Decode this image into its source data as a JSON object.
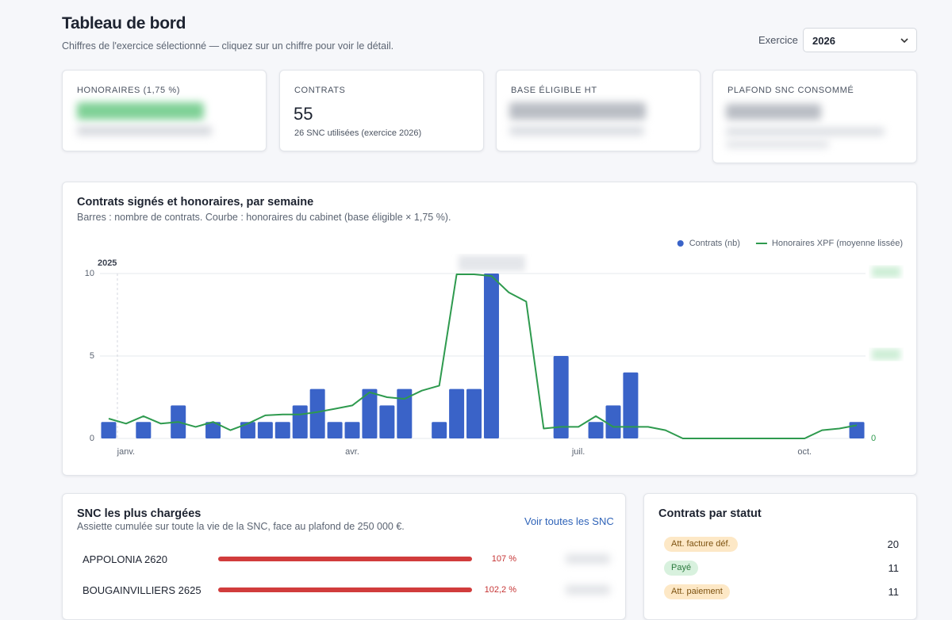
{
  "header": {
    "title": "Tableau de bord",
    "subtitle": "Chiffres de l'exercice sélectionné — cliquez sur un chiffre pour voir le détail.",
    "exercise_label": "Exercice",
    "exercise_value": "2026"
  },
  "kpis": [
    {
      "label": "HONORAIRES (1,75 %)"
    },
    {
      "label": "CONTRATS",
      "value": 55,
      "note": "26 SNC utilisées (exercice 2026)"
    },
    {
      "label": "BASE ÉLIGIBLE HT"
    },
    {
      "label": "PLAFOND SNC CONSOMMÉ"
    }
  ],
  "chart_data": {
    "type": "bar",
    "title": "Contrats signés et honoraires, par semaine",
    "subtitle": "Barres : nombre de contrats. Courbe : honoraires du cabinet (base éligible × 1,75 %).",
    "annotation": "2025",
    "categories": [
      null,
      "janv.",
      null,
      null,
      null,
      null,
      null,
      null,
      null,
      null,
      null,
      null,
      null,
      null,
      "avr.",
      null,
      null,
      null,
      null,
      null,
      null,
      null,
      null,
      null,
      null,
      null,
      null,
      "juil.",
      null,
      null,
      null,
      null,
      null,
      null,
      null,
      null,
      null,
      null,
      null,
      null,
      "oct.",
      null,
      null,
      null
    ],
    "series": [
      {
        "name": "Contrats (nb)",
        "type": "bar",
        "color": "#3a63c8",
        "values": [
          1,
          0,
          1,
          0,
          2,
          0,
          1,
          0,
          1,
          1,
          1,
          2,
          3,
          1,
          1,
          3,
          2,
          3,
          0,
          1,
          3,
          3,
          10,
          0,
          0,
          0,
          5,
          0,
          1,
          2,
          4,
          0,
          0,
          0,
          0,
          0,
          0,
          0,
          0,
          0,
          0,
          0,
          0,
          1
        ]
      },
      {
        "name": "Honoraires XPF (moyenne lissée)",
        "type": "line",
        "color": "#2e9a4e",
        "axis": "y2",
        "values": [
          1.2,
          0.9,
          1.35,
          0.9,
          1.0,
          0.7,
          1.0,
          0.5,
          0.9,
          1.4,
          1.45,
          1.45,
          1.6,
          1.8,
          2.0,
          2.8,
          2.5,
          2.4,
          2.9,
          3.2,
          9.95,
          9.95,
          9.85,
          8.85,
          8.3,
          0.6,
          0.7,
          0.7,
          1.35,
          0.7,
          0.7,
          0.7,
          0.5,
          0,
          0,
          0,
          0,
          0,
          0,
          0,
          0,
          0.5,
          0.6,
          0.8
        ]
      }
    ],
    "ylim": [
      0,
      10
    ],
    "yticks": [
      0,
      5,
      10
    ],
    "y2lim": [
      0,
      10
    ],
    "y2ticks": [
      0
    ],
    "grid": true,
    "legend": "top-right"
  },
  "snc_panel": {
    "title": "SNC les plus chargées",
    "subtitle": "Assiette cumulée sur toute la vie de la SNC, face au plafond de 250 000 €.",
    "link": "Voir toutes les SNC",
    "rows": [
      {
        "name": "APPOLONIA 2620",
        "share": "107 %"
      },
      {
        "name": "BOUGAINVILLIERS 2625",
        "share": "102,2 %"
      }
    ]
  },
  "status_panel": {
    "title": "Contrats par statut",
    "rows": [
      {
        "status": "Att. facture déf.",
        "count": 20
      },
      {
        "status": "Payé",
        "count": 11
      },
      {
        "status": "Att. paiement",
        "count": 11
      }
    ]
  }
}
